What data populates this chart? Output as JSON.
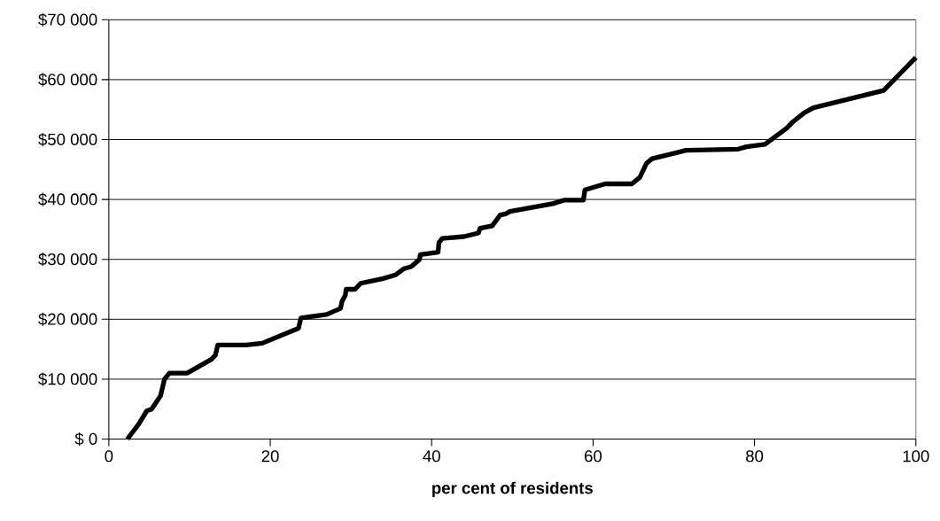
{
  "chart_data": {
    "type": "line",
    "xlabel": "per cent of residents",
    "x": [
      2.3,
      3.7,
      4.7,
      5.3,
      6.4,
      6.9,
      7.5,
      9.7,
      12.7,
      13.2,
      13.5,
      17,
      19,
      23.5,
      23.8,
      27,
      28.7,
      28.9,
      29.3,
      29.4,
      30.5,
      31.2,
      34,
      35.5,
      36.5,
      37.5,
      38.5,
      38.6,
      40.8,
      40.9,
      41.3,
      44,
      45.8,
      46,
      47.5,
      48.5,
      49.2,
      49.7,
      55,
      56.5,
      58.8,
      59,
      61.5,
      64.8,
      65.8,
      66.6,
      67.3,
      71.5,
      78,
      79,
      81.3,
      84,
      84.8,
      86.2,
      87.3,
      96,
      100
    ],
    "series": [
      {
        "color": "#000000",
        "values": [
          0,
          2500,
          4700,
          5000,
          7200,
          10000,
          11000,
          11000,
          13300,
          14000,
          15700,
          15700,
          16000,
          18500,
          20200,
          20800,
          21800,
          23000,
          24000,
          25000,
          25000,
          26000,
          26800,
          27400,
          28400,
          28800,
          30000,
          30800,
          31200,
          32800,
          33500,
          33800,
          34400,
          35200,
          35600,
          37400,
          37600,
          38000,
          39300,
          39900,
          39900,
          41600,
          42600,
          42600,
          43700,
          46000,
          46800,
          48200,
          48400,
          48800,
          49200,
          51900,
          53000,
          54500,
          55300,
          58200,
          63700
        ]
      }
    ],
    "xlim": [
      0,
      100
    ],
    "xticks": [
      0,
      20,
      40,
      60,
      80,
      100
    ],
    "ylim": [
      0,
      70000
    ],
    "yticks": [
      {
        "value": 0,
        "label": "$ 0"
      },
      {
        "value": 10000,
        "label": "$10 000"
      },
      {
        "value": 20000,
        "label": "$20 000"
      },
      {
        "value": 30000,
        "label": "$30 000"
      },
      {
        "value": 40000,
        "label": "$40 000"
      },
      {
        "value": 50000,
        "label": "$50 000"
      },
      {
        "value": 60000,
        "label": "$60 000"
      },
      {
        "value": 70000,
        "label": "$70 000"
      }
    ],
    "grid": "y",
    "marker": "none",
    "line_style": "solid"
  }
}
